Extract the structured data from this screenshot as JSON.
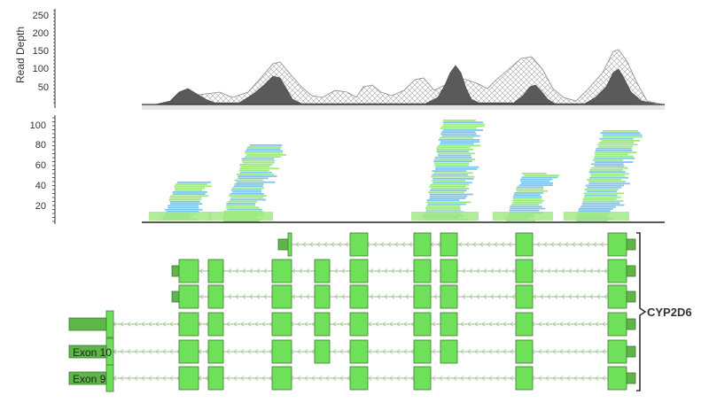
{
  "coverage_panel": {
    "ylabel": "Read Depth",
    "ticks": [
      "250",
      "200",
      "150",
      "100",
      "50"
    ]
  },
  "reads_panel": {
    "ticks": [
      "100",
      "80",
      "60",
      "40",
      "20"
    ]
  },
  "gene_track": {
    "gene_label": "CYP2D6",
    "exon_labels": [
      "Exon 10",
      "Exon 9"
    ]
  },
  "colors": {
    "coverage_fill": "#5a5a5a",
    "coverage_hatch": "#9a9a9a",
    "read_green": "#9ee87e",
    "read_blue": "#7cc6ef",
    "exon_green": "#6fe05a",
    "utr_green": "#5fb548",
    "intron_line": "#9bbf8c"
  }
}
